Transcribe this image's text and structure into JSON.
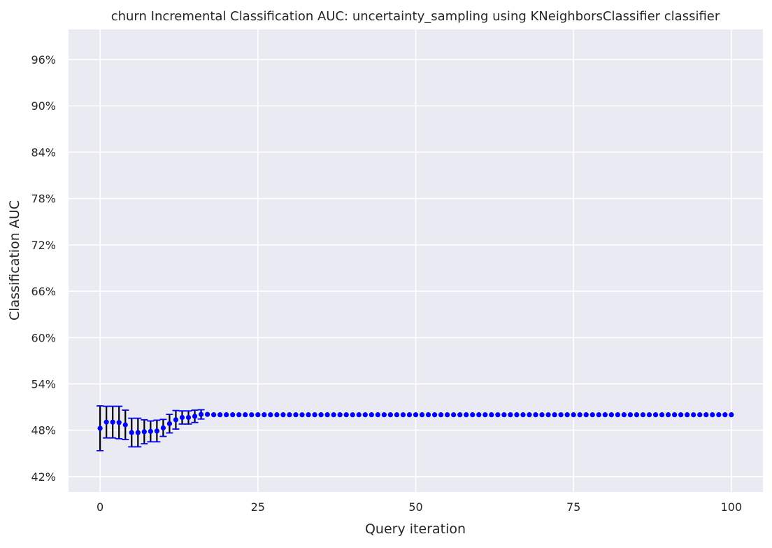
{
  "chart_data": {
    "type": "scatter",
    "title": "churn Incremental Classification AUC: uncertainty_sampling using KNeighborsClassifier classifier",
    "xlabel": "Query iteration",
    "ylabel": "Classification AUC",
    "xlim": [
      -5,
      105
    ],
    "ylim": [
      0.4,
      0.999
    ],
    "xticks": [
      0,
      25,
      50,
      75,
      100
    ],
    "xtick_labels": [
      "0",
      "25",
      "50",
      "75",
      "100"
    ],
    "yticks": [
      0.42,
      0.48,
      0.54,
      0.6,
      0.66,
      0.72,
      0.78,
      0.84,
      0.9,
      0.96
    ],
    "ytick_labels": [
      "42%",
      "48%",
      "54%",
      "60%",
      "66%",
      "72%",
      "78%",
      "84%",
      "90%",
      "96%"
    ],
    "grid": true,
    "style": {
      "background": "#eaeaf2",
      "grid": "#ffffff",
      "marker": "#0000ff",
      "errorbar": "#000000",
      "caps": "#0000ff"
    },
    "series": [
      {
        "x": [
          0,
          1,
          2,
          3,
          4,
          5,
          6,
          7,
          8,
          9,
          10,
          11,
          12,
          13,
          14,
          15,
          16,
          17,
          18,
          19,
          20,
          21,
          22,
          23,
          24,
          25,
          26,
          27,
          28,
          29,
          30,
          31,
          32,
          33,
          34,
          35,
          36,
          37,
          38,
          39,
          40,
          41,
          42,
          43,
          44,
          45,
          46,
          47,
          48,
          49,
          50,
          51,
          52,
          53,
          54,
          55,
          56,
          57,
          58,
          59,
          60,
          61,
          62,
          63,
          64,
          65,
          66,
          67,
          68,
          69,
          70,
          71,
          72,
          73,
          74,
          75,
          76,
          77,
          78,
          79,
          80,
          81,
          82,
          83,
          84,
          85,
          86,
          87,
          88,
          89,
          90,
          91,
          92,
          93,
          94,
          95,
          96,
          97,
          98,
          99,
          100
        ],
        "y": [
          0.4825,
          0.4905,
          0.4905,
          0.49,
          0.487,
          0.477,
          0.477,
          0.478,
          0.4785,
          0.479,
          0.483,
          0.4885,
          0.4935,
          0.4965,
          0.4965,
          0.498,
          0.5005,
          0.5005,
          0.5,
          0.5,
          0.5,
          0.5,
          0.5,
          0.5,
          0.5,
          0.5,
          0.5,
          0.5,
          0.5,
          0.5,
          0.5,
          0.5,
          0.5,
          0.5,
          0.5,
          0.5,
          0.5,
          0.5,
          0.5,
          0.5,
          0.5,
          0.5,
          0.5,
          0.5,
          0.5,
          0.5,
          0.5,
          0.5,
          0.5,
          0.5,
          0.5,
          0.5,
          0.5,
          0.5,
          0.5,
          0.5,
          0.5,
          0.5,
          0.5,
          0.5,
          0.5,
          0.5,
          0.5,
          0.5,
          0.5,
          0.5,
          0.5,
          0.5,
          0.5,
          0.5,
          0.5,
          0.5,
          0.5,
          0.5,
          0.5,
          0.5,
          0.5,
          0.5,
          0.5,
          0.5,
          0.5,
          0.5,
          0.5,
          0.5,
          0.5,
          0.5,
          0.5,
          0.5,
          0.5,
          0.5,
          0.5,
          0.5,
          0.5,
          0.5,
          0.5,
          0.5,
          0.5,
          0.5,
          0.5,
          0.5,
          0.5
        ],
        "yerr": [
          0.029,
          0.0205,
          0.0205,
          0.021,
          0.019,
          0.0185,
          0.0185,
          0.0155,
          0.0135,
          0.014,
          0.011,
          0.012,
          0.012,
          0.0085,
          0.0085,
          0.008,
          0.006,
          0.0005,
          0,
          0,
          0,
          0,
          0,
          0,
          0,
          0,
          0,
          0,
          0,
          0,
          0,
          0,
          0,
          0,
          0,
          0,
          0,
          0,
          0,
          0,
          0,
          0,
          0,
          0,
          0,
          0,
          0,
          0,
          0,
          0,
          0,
          0,
          0,
          0,
          0,
          0,
          0,
          0,
          0,
          0,
          0,
          0,
          0,
          0,
          0,
          0,
          0,
          0,
          0,
          0,
          0,
          0,
          0,
          0,
          0,
          0,
          0,
          0,
          0,
          0,
          0,
          0,
          0,
          0,
          0,
          0,
          0,
          0,
          0,
          0,
          0,
          0,
          0,
          0,
          0,
          0,
          0,
          0,
          0,
          0,
          0
        ]
      }
    ]
  }
}
